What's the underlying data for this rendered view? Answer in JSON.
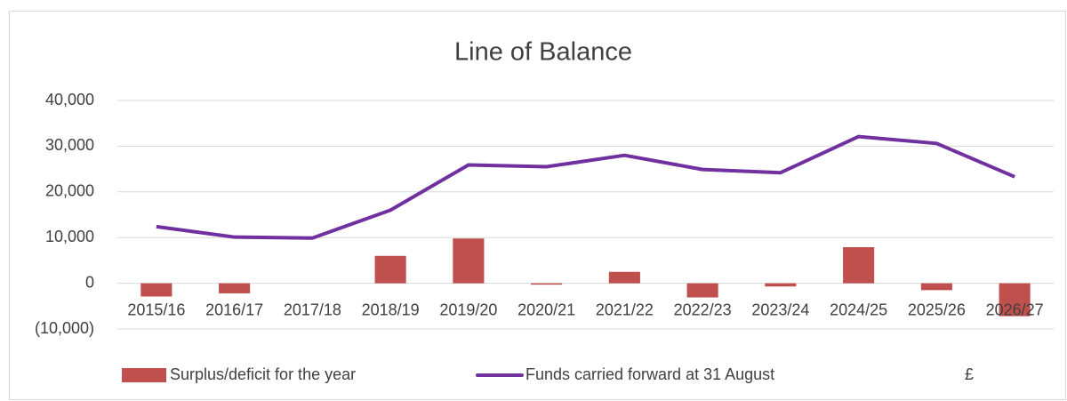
{
  "chart_data": {
    "type": "bar-line",
    "title": "Line of Balance",
    "categories": [
      "2015/16",
      "2016/17",
      "2017/18",
      "2018/19",
      "2019/20",
      "2020/21",
      "2021/22",
      "2022/23",
      "2023/24",
      "2024/25",
      "2025/26",
      "2026/27"
    ],
    "series": [
      {
        "name": "Surplus/deficit for the year",
        "type": "bar",
        "color": "#c0504d",
        "values": [
          -2900,
          -2200,
          0,
          6000,
          9800,
          -300,
          2500,
          -3100,
          -700,
          7900,
          -1500,
          -7200
        ]
      },
      {
        "name": "Funds carried forward at 31 August",
        "type": "line",
        "color": "#7030a0",
        "values": [
          12400,
          10100,
          9900,
          16000,
          25900,
          25500,
          28000,
          24900,
          24200,
          32100,
          30600,
          23300
        ]
      }
    ],
    "unit_label": "£",
    "ylim": [
      -10000,
      40000
    ],
    "yticks": [
      {
        "value": -10000,
        "label": "(10,000)"
      },
      0,
      {
        "value": 10000,
        "label": "10,000"
      },
      {
        "value": 20000,
        "label": "20,000"
      },
      {
        "value": 30000,
        "label": "30,000"
      },
      {
        "value": 40000,
        "label": "40,000"
      }
    ],
    "grid": true
  }
}
